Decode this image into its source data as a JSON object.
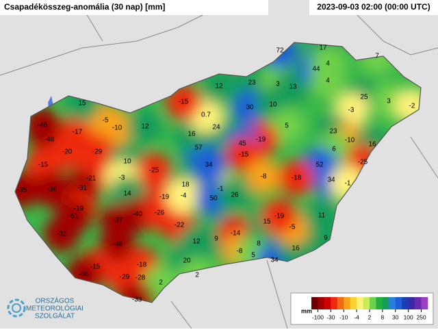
{
  "header": {
    "title": "Csapadékösszeg-anomália (30 nap) [mm]",
    "time": "2023-09-03 02:00 (00:00 UTC)"
  },
  "stations": [
    -46,
    -48,
    -17,
    -5,
    -10,
    12,
    15,
    -20,
    -29,
    -15,
    10,
    -25,
    -21,
    -3,
    -35,
    -36,
    -31,
    14,
    -19,
    -19,
    -51,
    -40,
    -26,
    -37,
    -22,
    -32,
    -48,
    -15,
    -18,
    -46,
    -29,
    -28,
    2,
    -33,
    12,
    9,
    20,
    2,
    -14,
    -8,
    8,
    5,
    34,
    16,
    15,
    -5,
    -19,
    11,
    9,
    18,
    -4,
    -1,
    50,
    26,
    34,
    57,
    16,
    24,
    0.7,
    -15,
    12,
    23,
    30,
    3,
    13,
    10,
    72,
    17,
    44,
    4,
    4,
    7,
    25,
    3,
    -2,
    -3,
    5,
    23,
    -10,
    16,
    -19,
    45,
    -15,
    6,
    52,
    -25,
    -8,
    -18,
    34,
    -1
  ],
  "legend": {
    "unit": "mm",
    "ticks": [
      -100,
      -30,
      -10,
      -4,
      2,
      8,
      30,
      100,
      250
    ],
    "colors": [
      "#6e0000",
      "#a00000",
      "#d00000",
      "#ee2a10",
      "#f26a10",
      "#f7a31a",
      "#fbd230",
      "#fff27a",
      "#c9ec5a",
      "#6fd04a",
      "#1fb040",
      "#149c5a",
      "#2a7ee0",
      "#1c5fd8",
      "#1a3db8",
      "#3a2aa8",
      "#6a2ab0",
      "#9a40c0"
    ]
  },
  "logo": {
    "line1": "ORSZÁGOS",
    "line2": "METEOROLÓGIAI",
    "line3": "SZOLGÁLAT"
  }
}
